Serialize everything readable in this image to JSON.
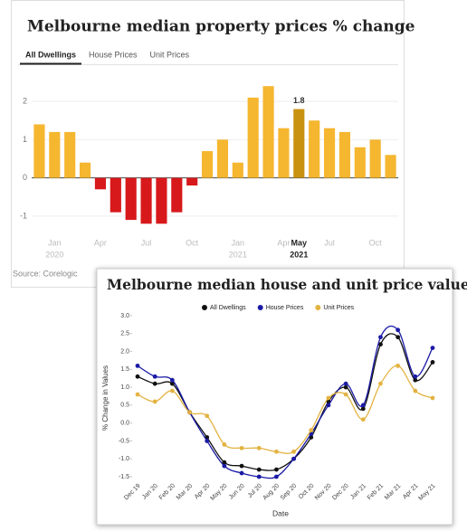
{
  "chart_data": [
    {
      "type": "bar",
      "title": "Melbourne median property prices % change",
      "tabs": [
        "All Dwellings",
        "House Prices",
        "Unit Prices"
      ],
      "active_tab": 0,
      "categories": [
        null,
        "Jan",
        null,
        null,
        "Apr",
        null,
        null,
        "Jul",
        null,
        null,
        "Oct",
        null,
        null,
        "Jan",
        null,
        null,
        "Apr",
        "May",
        null,
        "Jul",
        null,
        null,
        "Oct",
        null
      ],
      "category_years": [
        null,
        "2020",
        null,
        null,
        null,
        null,
        null,
        null,
        null,
        null,
        null,
        null,
        null,
        "2021",
        null,
        null,
        null,
        "2021",
        null,
        null,
        null,
        null,
        null,
        null
      ],
      "values": [
        1.4,
        1.2,
        1.2,
        0.4,
        -0.3,
        -0.9,
        -1.1,
        -1.2,
        -1.2,
        -0.9,
        -0.2,
        0.7,
        1.0,
        0.4,
        2.1,
        2.4,
        1.3,
        1.8,
        1.5,
        1.3,
        1.2,
        0.8,
        1.0,
        0.6
      ],
      "value_labels": [
        null,
        null,
        null,
        null,
        null,
        null,
        null,
        null,
        null,
        null,
        null,
        null,
        null,
        null,
        null,
        null,
        null,
        "1.8",
        null,
        null,
        null,
        null,
        null,
        null
      ],
      "highlight": 17,
      "color": "#f5b630",
      "negative_color": "#d7191c",
      "highlight_color": "#c99210",
      "ylim": [
        -1.5,
        2.5
      ],
      "yticks": [
        -1,
        0,
        1,
        2
      ],
      "grid": true,
      "source": "Source: Corelogic"
    },
    {
      "type": "line",
      "title": "Melbourne median house and unit price values",
      "x_label": "Date",
      "y_label": "% Change in Values",
      "categories": [
        "Dec 19",
        "Jan 20",
        "Feb 20",
        "Mar 20",
        "Apr 20",
        "May 20",
        "Jun 20",
        "Jul 20",
        "Aug 20",
        "Sep 20",
        "Oct 20",
        "Nov 20",
        "Dec 20",
        "Jan 21",
        "Feb 21",
        "Mar 21",
        "Apr 21",
        "May 21"
      ],
      "series": [
        {
          "name": "All Dwellings",
          "color": "#111111",
          "values": [
            1.3,
            1.1,
            1.1,
            0.3,
            -0.4,
            -1.1,
            -1.2,
            -1.3,
            -1.3,
            -1.0,
            -0.4,
            0.6,
            1.0,
            0.4,
            2.2,
            2.4,
            1.2,
            1.7
          ]
        },
        {
          "name": "House Prices",
          "color": "#1a1aa6",
          "values": [
            1.6,
            1.3,
            1.2,
            0.3,
            -0.5,
            -1.2,
            -1.4,
            -1.5,
            -1.5,
            -1.0,
            -0.3,
            0.5,
            1.1,
            0.5,
            2.4,
            2.6,
            1.3,
            2.1
          ]
        },
        {
          "name": "Unit Prices",
          "color": "#e3b341",
          "values": [
            0.8,
            0.6,
            0.9,
            0.3,
            0.2,
            -0.6,
            -0.7,
            -0.7,
            -0.8,
            -0.8,
            -0.2,
            0.7,
            0.8,
            0.1,
            1.1,
            1.6,
            0.9,
            0.7
          ]
        }
      ],
      "ylim": [
        -1.5,
        3
      ],
      "yticks": [
        -1.5,
        {
          "value": -1,
          "label": "-1.0"
        },
        -0.5,
        {
          "value": 0,
          "label": "0.0"
        },
        0.5,
        {
          "value": 1,
          "label": "1.0"
        },
        1.5,
        {
          "value": 2,
          "label": "2.0"
        },
        2.5,
        {
          "value": 3,
          "label": "3.0"
        }
      ],
      "legend": "top",
      "grid": false
    }
  ]
}
